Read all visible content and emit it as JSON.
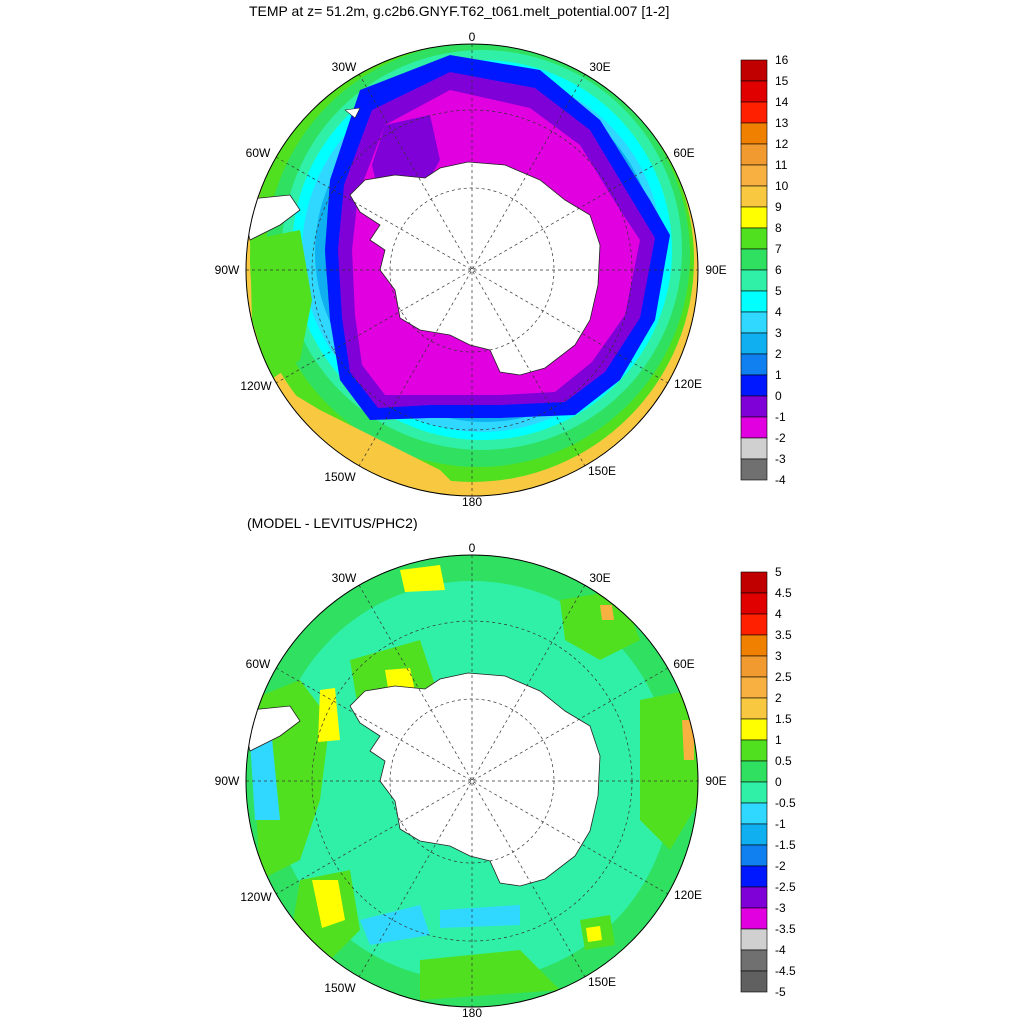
{
  "panels": [
    {
      "title": "TEMP at z=  51.2m, g.c2b6.GNYF.T62_t061.melt_potential.007 [1-2]",
      "lon_labels": [
        "0",
        "30E",
        "60E",
        "90E",
        "120E",
        "150E",
        "180",
        "150W",
        "120W",
        "90W",
        "60W",
        "30W"
      ],
      "colorbar": {
        "labels": [
          "16",
          "15",
          "14",
          "13",
          "12",
          "11",
          "10",
          "9",
          "8",
          "7",
          "6",
          "5",
          "4",
          "3",
          "2",
          "1",
          "0",
          "-1",
          "-2",
          "-3",
          "-4"
        ],
        "colors": [
          "#c00000",
          "#e00000",
          "#ff2000",
          "#f08000",
          "#f09a30",
          "#f8b040",
          "#f8c840",
          "#ffff00",
          "#50e020",
          "#30e060",
          "#30f0a8",
          "#00ffff",
          "#30d8ff",
          "#10b0f0",
          "#1080f0",
          "#0018ff",
          "#8000d8",
          "#e000e0",
          "#d0d0d0",
          "#707070"
        ]
      }
    },
    {
      "title": "(MODEL - LEVITUS/PHC2)",
      "lon_labels": [
        "0",
        "30E",
        "60E",
        "90E",
        "120E",
        "150E",
        "180",
        "150W",
        "120W",
        "90W",
        "60W",
        "30W"
      ],
      "colorbar": {
        "labels": [
          "5",
          "4.5",
          "4",
          "3.5",
          "3",
          "2.5",
          "2",
          "1.5",
          "1",
          "0.5",
          "0",
          "-0.5",
          "-1",
          "-1.5",
          "-2",
          "-2.5",
          "-3",
          "-3.5",
          "-4",
          "-4.5",
          "-5"
        ],
        "colors": [
          "#c00000",
          "#e00000",
          "#ff2000",
          "#f08000",
          "#f09a30",
          "#f8b040",
          "#f8c840",
          "#ffff00",
          "#50e020",
          "#30e060",
          "#30f0a8",
          "#30d8ff",
          "#10b0f0",
          "#1080f0",
          "#0018ff",
          "#8000d8",
          "#e000e0",
          "#d0d0d0",
          "#707070",
          "#606060"
        ]
      }
    }
  ]
}
